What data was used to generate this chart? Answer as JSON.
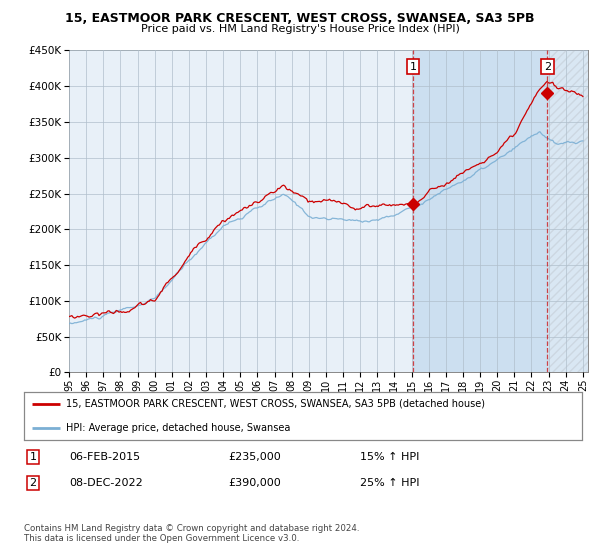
{
  "title": "15, EASTMOOR PARK CRESCENT, WEST CROSS, SWANSEA, SA3 5PB",
  "subtitle": "Price paid vs. HM Land Registry's House Price Index (HPI)",
  "legend_line1": "15, EASTMOOR PARK CRESCENT, WEST CROSS, SWANSEA, SA3 5PB (detached house)",
  "legend_line2": "HPI: Average price, detached house, Swansea",
  "annotation1_date": "06-FEB-2015",
  "annotation1_price": "£235,000",
  "annotation1_hpi": "15% ↑ HPI",
  "annotation2_date": "08-DEC-2022",
  "annotation2_price": "£390,000",
  "annotation2_hpi": "25% ↑ HPI",
  "footnote": "Contains HM Land Registry data © Crown copyright and database right 2024.\nThis data is licensed under the Open Government Licence v3.0.",
  "red_color": "#cc0000",
  "blue_color": "#7bafd4",
  "plot_bg": "#e8f0f8",
  "shaded_bg": "#ccdff0",
  "grid_color": "#b0bfcc",
  "sale1_year": 2015.08,
  "sale1_price": 235000,
  "sale2_year": 2022.92,
  "sale2_price": 390000,
  "ylim_min": 0,
  "ylim_max": 450000,
  "xlim_min": 1995,
  "xlim_max": 2025
}
